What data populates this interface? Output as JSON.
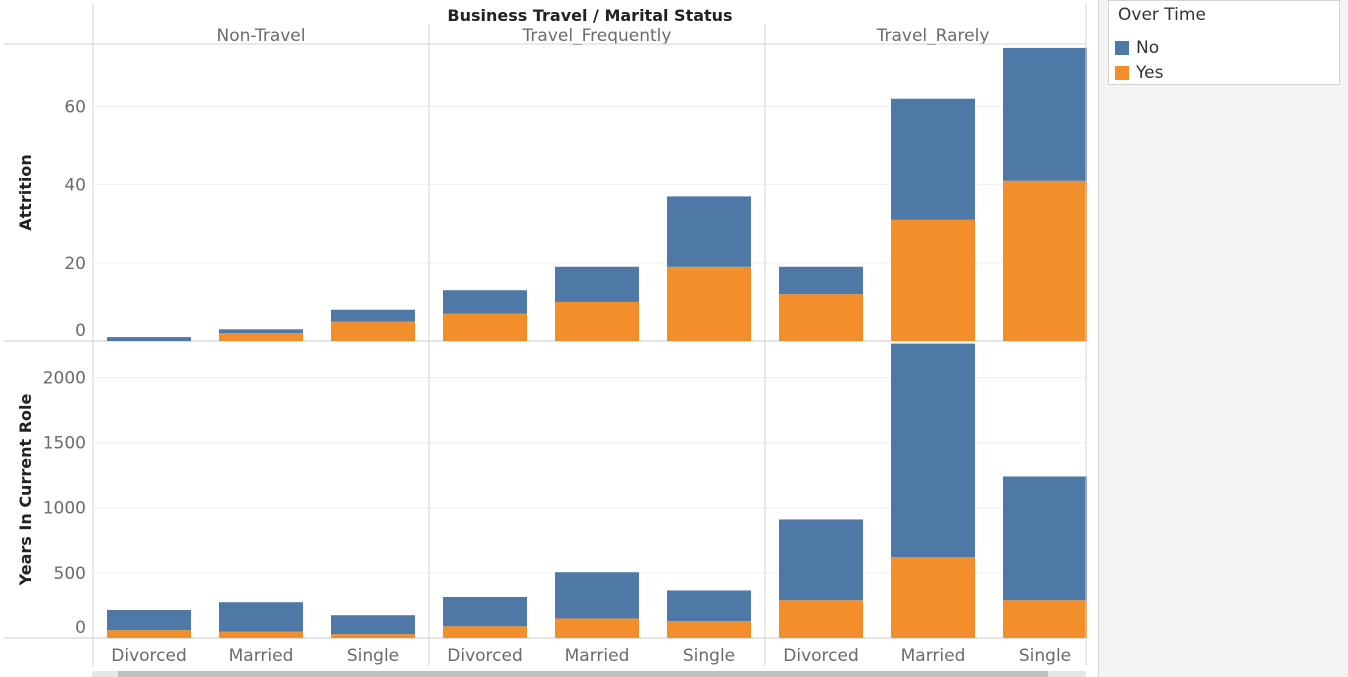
{
  "chart_data": {
    "type": "bar",
    "stacked": true,
    "title": "Business Travel  /  Marital Status",
    "columns": [
      "Non-Travel",
      "Travel_Frequently",
      "Travel_Rarely"
    ],
    "categories": [
      "Divorced",
      "Married",
      "Single"
    ],
    "legend": {
      "title": "Over Time",
      "placement": "top-right",
      "items": [
        {
          "name": "No",
          "color": "#4e79a7"
        },
        {
          "name": "Yes",
          "color": "#f28e2b"
        }
      ]
    },
    "panels": [
      {
        "ylabel": "Attrition",
        "ylim": [
          0,
          76
        ],
        "yticks": [
          0,
          20,
          40,
          60
        ],
        "yes": [
          [
            0,
            2,
            5
          ],
          [
            7,
            10,
            19
          ],
          [
            12,
            31,
            41
          ]
        ],
        "no": [
          [
            1,
            1,
            3
          ],
          [
            6,
            9,
            18
          ],
          [
            7,
            31,
            34
          ]
        ]
      },
      {
        "ylabel": "Years In Current Role",
        "ylim": [
          0,
          2280
        ],
        "yticks": [
          0,
          500,
          1000,
          1500,
          2000
        ],
        "yes": [
          [
            60,
            50,
            30
          ],
          [
            90,
            150,
            130
          ],
          [
            290,
            620,
            290
          ]
        ],
        "no": [
          [
            155,
            225,
            145
          ],
          [
            225,
            355,
            235
          ],
          [
            620,
            1640,
            950
          ]
        ]
      }
    ]
  }
}
